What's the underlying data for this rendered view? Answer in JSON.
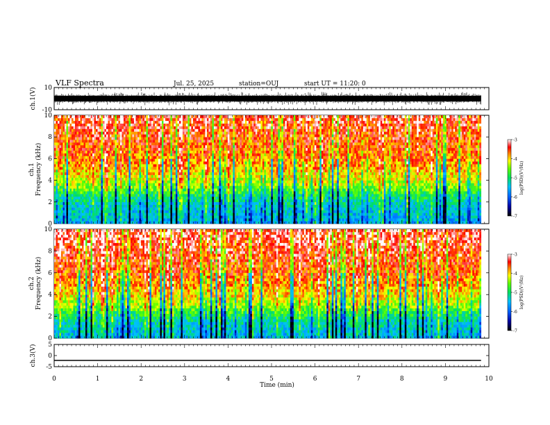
{
  "header": {
    "title": "VLF Spectra",
    "date": "Jul. 25, 2025",
    "station": "station=OUJ",
    "start_time": "start UT = 11:20: 0"
  },
  "chart_data": [
    {
      "type": "line",
      "name": "ch1-waveform",
      "ylabel": "ch.1(V)",
      "ylim": [
        -10,
        10
      ],
      "yticklabels": [
        "10",
        "-10"
      ],
      "band_center": 0,
      "band_halfwidth": 2.5,
      "spike_top": 6,
      "spike_bottom": -6,
      "xlim": [
        0,
        9.82
      ]
    },
    {
      "type": "heatmap",
      "name": "ch1-spectrogram",
      "ylabel_line1": "ch.1",
      "ylabel_line2": "Frequency (kHz)",
      "xlim": [
        0,
        10
      ],
      "ylim": [
        0,
        10
      ],
      "yticklabels": [
        "0",
        "2",
        "4",
        "6",
        "8",
        "10"
      ],
      "data_xmax": 9.82,
      "colorbar": {
        "label": "log(PSD)(V²/Hz)",
        "ticklabels": [
          "-3",
          "-4",
          "-5",
          "-6",
          "-7"
        ],
        "range": [
          -7,
          -3
        ]
      },
      "profile_freq_khz": [
        0,
        0.5,
        1,
        1.5,
        2,
        2.5,
        3,
        3.5,
        4,
        5,
        6,
        7,
        8,
        9,
        10
      ],
      "profile_log_psd": [
        -5.6,
        -5.5,
        -5.4,
        -5.3,
        -5.2,
        -5.0,
        -4.7,
        -4.4,
        -4.2,
        -3.9,
        -3.7,
        -3.6,
        -3.5,
        -3.4,
        -3.3
      ]
    },
    {
      "type": "heatmap",
      "name": "ch2-spectrogram",
      "ylabel_line1": "ch.2",
      "ylabel_line2": "Frequency (kHz)",
      "xlim": [
        0,
        10
      ],
      "ylim": [
        0,
        10
      ],
      "yticklabels": [
        "0",
        "2",
        "4",
        "6",
        "8",
        "10"
      ],
      "data_xmax": 9.82,
      "colorbar": {
        "label": "log(PSD)(V²/Hz)",
        "ticklabels": [
          "-3",
          "-4",
          "-5",
          "-6",
          "-7"
        ],
        "range": [
          -7,
          -3
        ]
      },
      "profile_freq_khz": [
        0,
        0.5,
        1,
        1.5,
        2,
        2.5,
        3,
        3.5,
        4,
        5,
        6,
        7,
        8,
        9,
        10
      ],
      "profile_log_psd": [
        -5.5,
        -5.4,
        -5.3,
        -5.2,
        -5.0,
        -4.7,
        -4.4,
        -4.2,
        -4.0,
        -3.8,
        -3.6,
        -3.5,
        -3.4,
        -3.3,
        -3.2
      ]
    },
    {
      "type": "line",
      "name": "ch3-waveform",
      "ylabel": "ch.3(V)",
      "ylim": [
        -5,
        5
      ],
      "yticklabels": [
        "5",
        "0",
        "-5"
      ],
      "values": [
        -2.2,
        -2.2
      ],
      "x": [
        0,
        9.82
      ]
    }
  ],
  "xaxis": {
    "label": "Time (min)",
    "ticklabels": [
      "0",
      "1",
      "2",
      "3",
      "4",
      "5",
      "6",
      "7",
      "8",
      "9",
      "10"
    ],
    "xlim": [
      0,
      10
    ]
  }
}
